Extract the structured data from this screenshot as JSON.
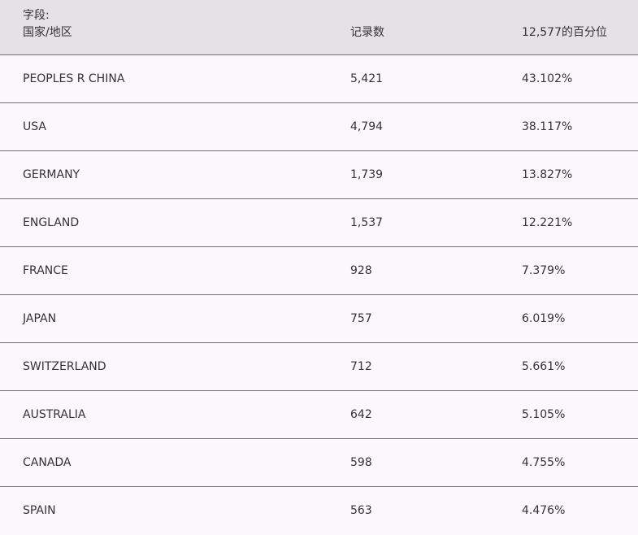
{
  "header": {
    "field_prefix": "字段:",
    "col_country": "国家/地区",
    "col_count": "记录数",
    "col_percent": "12,577的百分位"
  },
  "rows": [
    {
      "country": "PEOPLES R CHINA",
      "count": "5,421",
      "percent": "43.102%"
    },
    {
      "country": "USA",
      "count": "4,794",
      "percent": "38.117%"
    },
    {
      "country": "GERMANY",
      "count": "1,739",
      "percent": "13.827%"
    },
    {
      "country": "ENGLAND",
      "count": "1,537",
      "percent": "12.221%"
    },
    {
      "country": "FRANCE",
      "count": "928",
      "percent": "7.379%"
    },
    {
      "country": "JAPAN",
      "count": "757",
      "percent": "6.019%"
    },
    {
      "country": "SWITZERLAND",
      "count": "712",
      "percent": "5.661%"
    },
    {
      "country": "AUSTRALIA",
      "count": "642",
      "percent": "5.105%"
    },
    {
      "country": "CANADA",
      "count": "598",
      "percent": "4.755%"
    },
    {
      "country": "SPAIN",
      "count": "563",
      "percent": "4.476%"
    }
  ]
}
